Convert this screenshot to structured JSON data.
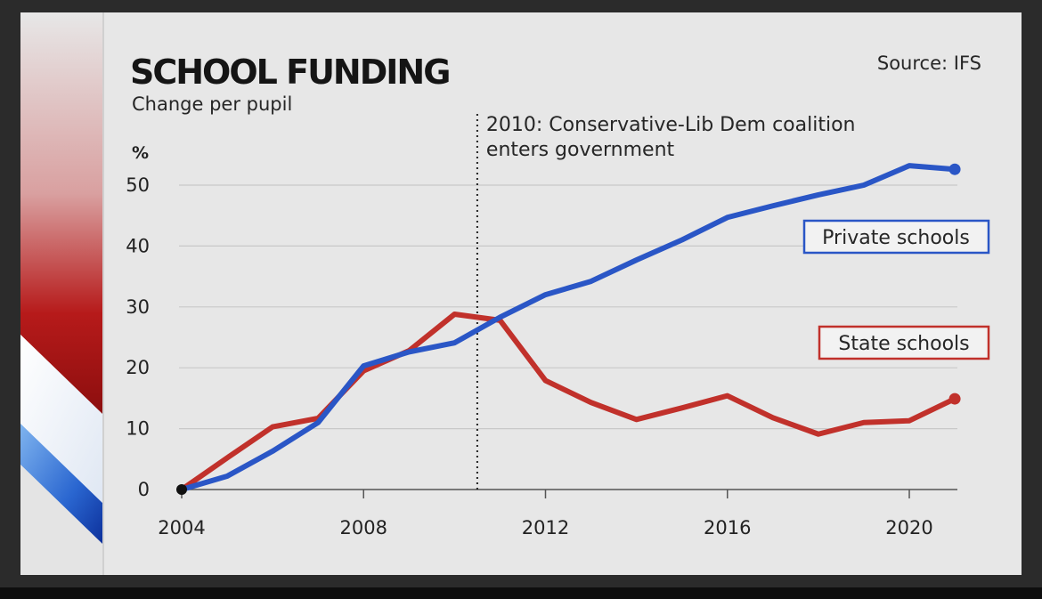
{
  "chart_data": {
    "type": "line",
    "title": "SCHOOL FUNDING",
    "subtitle": "Change per pupil",
    "source": "Source: IFS",
    "y_unit": "%",
    "xlim": [
      2004,
      2021
    ],
    "ylim": [
      0,
      55
    ],
    "x_ticks": [
      2004,
      2008,
      2012,
      2016,
      2020
    ],
    "y_ticks": [
      0,
      10,
      20,
      30,
      40,
      50
    ],
    "grid": "horizontal",
    "annotation": {
      "x": 2010.5,
      "lines": [
        "2010: Conservative-Lib Dem coalition",
        "enters government"
      ]
    },
    "series": [
      {
        "name": "Private schools",
        "color": "#2a56c6",
        "x": [
          2004,
          2005,
          2006,
          2007,
          2008,
          2009,
          2010,
          2011,
          2012,
          2013,
          2014,
          2015,
          2016,
          2017,
          2018,
          2019,
          2020,
          2021
        ],
        "values": [
          0,
          2.2,
          6.3,
          11.0,
          20.3,
          22.6,
          24.1,
          28.3,
          32.0,
          34.2,
          37.7,
          41.0,
          44.7,
          46.6,
          48.4,
          50.0,
          53.2,
          52.6
        ]
      },
      {
        "name": "State schools",
        "color": "#c1312b",
        "x": [
          2004,
          2005,
          2006,
          2007,
          2008,
          2009,
          2010,
          2011,
          2012,
          2013,
          2014,
          2015,
          2016,
          2017,
          2018,
          2019,
          2020,
          2021
        ],
        "values": [
          0,
          5.2,
          10.3,
          11.7,
          19.5,
          22.8,
          28.8,
          27.8,
          17.9,
          14.3,
          11.5,
          13.4,
          15.4,
          11.8,
          9.1,
          11.0,
          11.3,
          14.9
        ]
      }
    ]
  }
}
